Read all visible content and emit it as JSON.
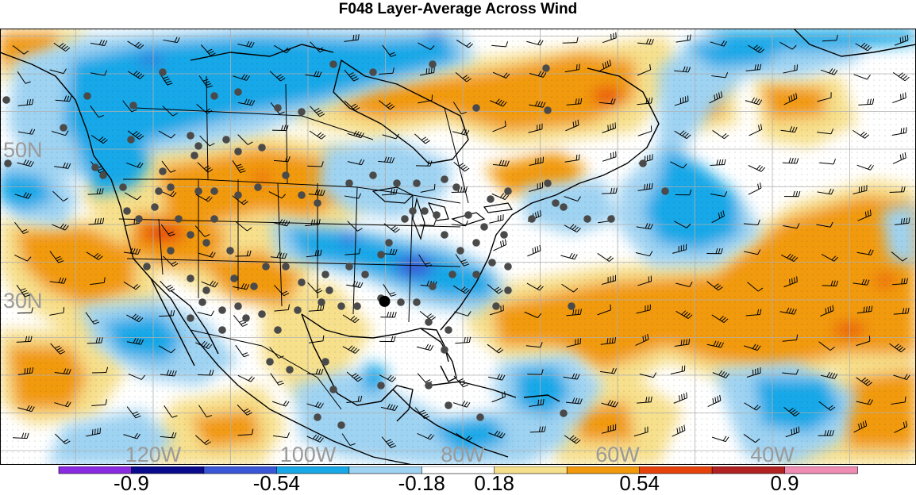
{
  "title": "F048 Layer-Average Across Wind",
  "map": {
    "lat_labels": [
      {
        "text": "50N",
        "lat": 50
      },
      {
        "text": "30N",
        "lat": 30
      }
    ],
    "lon_labels": [
      {
        "text": "120W",
        "lon": -120
      },
      {
        "text": "100W",
        "lon": -100
      },
      {
        "text": "80W",
        "lon": -80
      },
      {
        "text": "60W",
        "lon": -60
      },
      {
        "text": "40W",
        "lon": -40
      }
    ],
    "grid": true,
    "stippling": true,
    "wind_barbs": true,
    "station_dots": true,
    "highlight_station": {
      "lat": 29.8,
      "lon": -90.1
    }
  },
  "colorbar": {
    "colors": [
      "#8a2be2",
      "#0a0a8c",
      "#3a57d8",
      "#18a8e8",
      "#9fd3f2",
      "#ffffff",
      "#f7e08c",
      "#f29a0c",
      "#e8420c",
      "#b22222",
      "#f08cb4"
    ],
    "tick_labels": [
      {
        "text": "-0.9",
        "boundary": 1
      },
      {
        "text": "-0.54",
        "boundary": 3
      },
      {
        "text": "-0.18",
        "boundary": 5
      },
      {
        "text": "0.18",
        "boundary": 6
      },
      {
        "text": "0.54",
        "boundary": 8
      },
      {
        "text": "0.9",
        "boundary": 10
      }
    ]
  }
}
